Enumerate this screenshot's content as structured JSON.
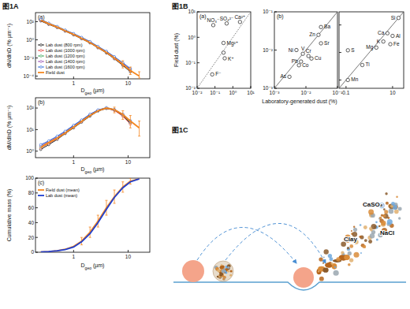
{
  "labels": [
    "图1A",
    "图1B",
    "图1C"
  ],
  "chart_data": [
    {
      "type": "line",
      "subtitle": "(a)",
      "log": true,
      "xlabel": "Dgeo (µm)",
      "ylabel": "dN/dlnD (% µm⁻¹)",
      "x": [
        0.25,
        0.35,
        0.5,
        0.7,
        1,
        1.4,
        2,
        2.8,
        4,
        5.6,
        8,
        11,
        16
      ],
      "xlim": [
        0.2,
        25
      ],
      "xticks": [
        1,
        10
      ],
      "ylim": [
        5e-05,
        1000
      ],
      "yticks": [
        {
          "value": 0.0001,
          "label": "10⁻⁴"
        },
        {
          "value": 0.01,
          "label": "10⁻²"
        },
        {
          "value": 1,
          "label": "10⁰"
        },
        {
          "value": 100,
          "label": "10²"
        }
      ],
      "legend": "lower left",
      "series": [
        {
          "name": "Lab dust (800 rpm)",
          "color": "#000000",
          "marker": "circle",
          "values": [
            120,
            50,
            22,
            9,
            3.5,
            1.3,
            0.45,
            0.13,
            0.035,
            0.008,
            0.0015,
            0.0003,
            null
          ]
        },
        {
          "name": "Lab dust (1000 rpm)",
          "color": "#e3342f",
          "marker": "circle",
          "values": [
            140,
            55,
            24,
            10,
            3.8,
            1.4,
            0.5,
            0.14,
            0.04,
            0.009,
            0.0018,
            0.0004,
            null
          ]
        },
        {
          "name": "Lab dust (1200 rpm)",
          "color": "#2a9d4a",
          "marker": "circle",
          "values": [
            160,
            62,
            26,
            11,
            4.2,
            1.6,
            0.55,
            0.16,
            0.045,
            0.011,
            0.0022,
            0.0005,
            null
          ]
        },
        {
          "name": "Lab dust (1400 rpm)",
          "color": "#8e44ad",
          "marker": "circle",
          "values": [
            170,
            65,
            27,
            11,
            4.5,
            1.7,
            0.6,
            0.17,
            0.05,
            0.012,
            0.0025,
            0.0006,
            null
          ]
        },
        {
          "name": "Lab dust (1600 rpm)",
          "color": "#1f5fd6",
          "marker": "circle",
          "values": [
            180,
            70,
            30,
            12,
            5,
            1.9,
            0.65,
            0.19,
            0.055,
            0.014,
            0.003,
            0.0007,
            null
          ]
        },
        {
          "name": "Field dust",
          "color": "#f5871f",
          "values": [
            150,
            60,
            25,
            10,
            4,
            1.5,
            0.5,
            0.15,
            0.04,
            0.01,
            0.002,
            0.0004,
            0.0001
          ],
          "error_low": [
            null,
            null,
            null,
            null,
            null,
            null,
            null,
            null,
            null,
            null,
            0.0008,
            0.00015,
            6e-05
          ],
          "error_high": [
            null,
            null,
            null,
            null,
            null,
            null,
            null,
            null,
            null,
            null,
            0.005,
            0.001,
            0.0003
          ]
        }
      ]
    },
    {
      "type": "line",
      "subtitle": "(b)",
      "log": true,
      "xlabel": "Dgeo (µm)",
      "ylabel": "dM/dlnD (% µm⁻¹)",
      "x": [
        0.25,
        0.35,
        0.5,
        0.7,
        1,
        1.4,
        2,
        2.8,
        4,
        5.6,
        8,
        11,
        16
      ],
      "xlim": [
        0.2,
        25
      ],
      "xticks": [
        1,
        10
      ],
      "ylim": [
        0.5,
        300
      ],
      "yticks": [
        {
          "value": 1,
          "label": "10⁰"
        },
        {
          "value": 10,
          "label": "10¹"
        },
        {
          "value": 100,
          "label": "10²"
        }
      ],
      "series": [
        {
          "color": "#000000",
          "marker": "circle",
          "values": [
            1.2,
            2,
            3.5,
            6.5,
            12,
            22,
            42,
            72,
            95,
            80,
            45,
            20,
            null
          ]
        },
        {
          "color": "#e3342f",
          "marker": "circle",
          "values": [
            1.4,
            2.3,
            3.8,
            7,
            13,
            24,
            46,
            76,
            98,
            78,
            42,
            18,
            null
          ]
        },
        {
          "color": "#2a9d4a",
          "marker": "circle",
          "values": [
            1.6,
            2.6,
            4.2,
            7.5,
            14,
            26,
            48,
            78,
            100,
            82,
            48,
            22,
            null
          ]
        },
        {
          "color": "#8e44ad",
          "marker": "circle",
          "values": [
            1.8,
            2.8,
            4.5,
            8,
            15,
            27,
            50,
            80,
            102,
            84,
            50,
            24,
            null
          ]
        },
        {
          "color": "#1f5fd6",
          "marker": "circle",
          "values": [
            2,
            3,
            5,
            8.5,
            16,
            28,
            52,
            82,
            105,
            86,
            52,
            26,
            null
          ]
        },
        {
          "color": "#f5871f",
          "values": [
            1.5,
            2.5,
            4,
            7,
            13,
            24,
            45,
            75,
            100,
            85,
            50,
            25,
            12
          ],
          "error_low": [
            null,
            null,
            null,
            null,
            null,
            null,
            null,
            null,
            null,
            60,
            30,
            12,
            5
          ],
          "error_high": [
            null,
            null,
            null,
            null,
            null,
            null,
            null,
            null,
            null,
            110,
            75,
            45,
            25
          ]
        }
      ]
    },
    {
      "type": "line",
      "subtitle": "(c)",
      "log": "x",
      "xlabel": "Dgeo (µm)",
      "ylabel": "Cumulative mass (%)",
      "x": [
        0.25,
        0.35,
        0.5,
        0.7,
        1,
        1.4,
        2,
        2.8,
        4,
        5.6,
        8,
        11,
        16
      ],
      "xlim": [
        0.2,
        25
      ],
      "xticks": [
        1,
        10
      ],
      "ylim": [
        0,
        100
      ],
      "yticks": [
        0,
        20,
        40,
        60,
        80,
        100
      ],
      "legend": "upper left",
      "series": [
        {
          "name": "Field dust (mean)",
          "color": "#f5871f",
          "values": [
            0.5,
            1,
            2,
            4,
            8,
            15,
            27,
            42,
            60,
            75,
            88,
            96,
            99
          ],
          "error_low": [
            null,
            null,
            null,
            null,
            null,
            10,
            20,
            34,
            50,
            66,
            81,
            92,
            null
          ],
          "error_high": [
            null,
            null,
            null,
            null,
            null,
            20,
            34,
            50,
            70,
            84,
            95,
            100,
            null
          ]
        },
        {
          "name": "Lab dust (mean)",
          "color": "#1f3fd0",
          "values": [
            0.5,
            1,
            2,
            3.5,
            7,
            14,
            25,
            40,
            58,
            74,
            87,
            95,
            99
          ]
        }
      ]
    },
    {
      "type": "scatter",
      "subtitle": "(a)",
      "log": true,
      "ylabel": "Field dust (%)",
      "x": [
        0.08,
        0.45,
        2.5,
        0.3,
        0.3,
        0.35,
        0.07
      ],
      "values": [
        3,
        3.5,
        4,
        0.6,
        0.25,
        0.15,
        0.035
      ],
      "point_labels": [
        "NO₃⁻",
        "SO₄²⁻",
        "Ca²⁺",
        "Mg²⁺",
        null,
        "K⁺",
        "F⁻"
      ],
      "xlim": [
        0.01,
        10
      ],
      "xticks": [
        {
          "value": 0.01,
          "label": "10⁻²"
        },
        {
          "value": 0.1,
          "label": "10⁻¹"
        },
        {
          "value": 1,
          "label": "10⁰"
        },
        {
          "value": 10,
          "label": "10¹"
        }
      ],
      "ylim": [
        0.01,
        10
      ],
      "yticks": [
        {
          "value": 0.01,
          "label": "10⁻²"
        },
        {
          "value": 0.1,
          "label": "10⁻¹"
        },
        {
          "value": 1,
          "label": "10⁰"
        },
        {
          "value": 10,
          "label": "10¹"
        }
      ],
      "marker": "circle",
      "line_style": "dotted"
    },
    {
      "type": "scatter",
      "subtitle": "(b)",
      "log": true,
      "xlabel": "Laboratory-generated dust (%)",
      "x": [
        0.03,
        0.025,
        0.03,
        0.005,
        0.008,
        0.012,
        0.015,
        0.007,
        0.006,
        0.003
      ],
      "values": [
        0.04,
        0.025,
        0.015,
        0.01,
        0.008,
        0.007,
        0.006,
        0.005,
        0.004,
        0.002
      ],
      "point_labels": [
        "Ba",
        "Zn",
        "Sr",
        "Ni",
        "V",
        "Cr",
        "Cu",
        "Pb",
        "Co",
        "As"
      ],
      "xlim": [
        0.001,
        0.1
      ],
      "xticks": [
        {
          "value": 0.001,
          "label": "10⁻³"
        },
        {
          "value": 0.01,
          "label": "10⁻²"
        },
        {
          "value": 0.1,
          "label": "10⁻¹"
        }
      ],
      "ylim": [
        0.001,
        0.1
      ],
      "yticks": [
        {
          "value": 0.001,
          "label": "10⁻³"
        },
        {
          "value": 0.01,
          "label": "10⁻²"
        },
        {
          "value": 0.1,
          "label": "10⁻¹"
        }
      ],
      "marker": "circle",
      "line_style": "solid"
    },
    {
      "type": "scatter",
      "log": true,
      "x": [
        0.12,
        0.5,
        0.12,
        2,
        4,
        8,
        6,
        10,
        18
      ],
      "values": [
        1.2,
        0.35,
        0.1,
        1.5,
        2.5,
        2,
        5,
        4,
        18
      ],
      "point_labels": [
        "S",
        "Ti",
        "Mn",
        "Mg",
        "K",
        "Fe",
        "Ca",
        "Al",
        "Si"
      ],
      "xlim": [
        0.05,
        30
      ],
      "xticks": [
        0.1,
        10
      ],
      "ylim": [
        0.05,
        30
      ],
      "yticks": [
        0.1,
        1,
        10
      ],
      "tick_labels": "x",
      "marker": "circle",
      "line_style": "solid"
    }
  ],
  "diagram": {
    "texts": [
      "CaSO₄",
      "NaCl",
      "Clay"
    ]
  }
}
